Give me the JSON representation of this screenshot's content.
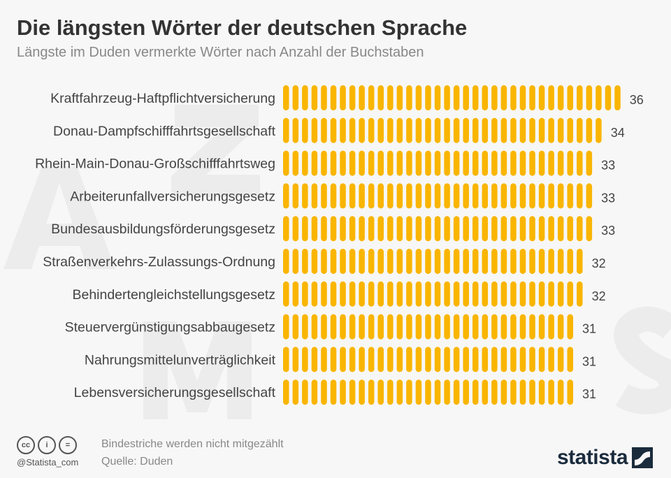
{
  "title": "Die längsten Wörter der deutschen Sprache",
  "subtitle": "Längste im Duden vermerkte Wörter nach Anzahl der Buchstaben",
  "watermark_letters": [
    "A",
    "Z",
    "M",
    "S"
  ],
  "colors": {
    "bar": "#f9b500",
    "background": "#f7f7f7",
    "brand": "#1a2b3c"
  },
  "chart_data": {
    "type": "bar",
    "orientation": "horizontal",
    "mark_style": "one pill per letter",
    "title": "Die längsten Wörter der deutschen Sprache",
    "categories": [
      "Kraftfahrzeug-Haftpflichtversicherung",
      "Donau-Dampfschifffahrtsgesellschaft",
      "Rhein-Main-Donau-Großschifffahrtsweg",
      "Arbeiterunfallversicherungsgesetz",
      "Bundesausbildungsförderungsgesetz",
      "Straßenverkehrs-Zulassungs-Ordnung",
      "Behindertengleichstellungsgesetz",
      "Steuervergünstigungsabbaugesetz",
      "Nahrungsmittelunverträglichkeit",
      "Lebensversicherungsgesellschaft"
    ],
    "values": [
      36,
      34,
      33,
      33,
      33,
      32,
      32,
      31,
      31,
      31
    ],
    "xlim": [
      0,
      36
    ],
    "grid": false
  },
  "footer": {
    "note": "Bindestriche werden nicht mitgezählt",
    "source": "Quelle: Duden",
    "handle": "@Statista_com",
    "license_icons": [
      "cc-icon",
      "by-icon",
      "nd-icon"
    ],
    "license_glyphs": [
      "cc",
      "i",
      "="
    ],
    "logo": "statista"
  }
}
